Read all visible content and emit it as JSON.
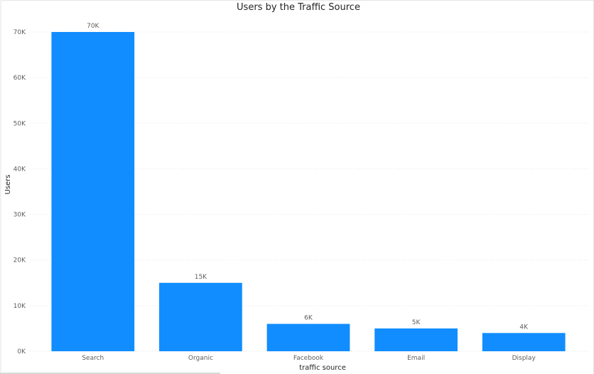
{
  "chart_data": {
    "type": "bar",
    "title": "Users by the Traffic Source",
    "xlabel": "traffic source",
    "ylabel": "Users",
    "categories": [
      "Search",
      "Organic",
      "Facebook",
      "Email",
      "Display"
    ],
    "values": [
      70000,
      15000,
      6000,
      5000,
      4000
    ],
    "data_labels": [
      "70K",
      "15K",
      "6K",
      "5K",
      "4K"
    ],
    "ylim": [
      0,
      70000
    ],
    "yticks": [
      0,
      10000,
      20000,
      30000,
      40000,
      50000,
      60000,
      70000
    ],
    "ytick_labels": [
      "0K",
      "10K",
      "20K",
      "30K",
      "40K",
      "50K",
      "60K",
      "70K"
    ],
    "grid": true,
    "legend": "none",
    "bar_color": "#118DFF"
  }
}
